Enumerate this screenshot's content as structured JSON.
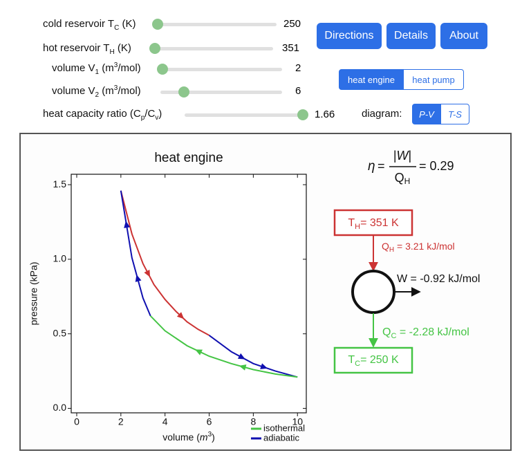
{
  "controls": [
    {
      "label": [
        "cold reservoir T",
        "C",
        " (K)"
      ],
      "value": 250
    },
    {
      "label": [
        "hot reservoir T",
        "H",
        " (K)"
      ],
      "value": 351
    },
    {
      "label": [
        "volume V",
        "1",
        " (m",
        "3",
        "/mol)"
      ],
      "value": 2
    },
    {
      "label": [
        "volume V",
        "2",
        " (m",
        "3",
        "/mol)"
      ],
      "value": 6
    },
    {
      "label": [
        "heat capacity ratio (C",
        "p",
        "/C",
        "v",
        ")"
      ],
      "value": 1.66
    }
  ],
  "buttons": [
    "Directions",
    "Details",
    "About"
  ],
  "mode_toggle": {
    "options": [
      "heat engine",
      "heat pump"
    ],
    "selected": 0
  },
  "diagram_toggle": {
    "label": "diagram:",
    "options": [
      "P-V",
      "T-S"
    ],
    "selected": 0
  },
  "chart_data": {
    "type": "line",
    "title": "heat engine",
    "xlabel": [
      "volume (",
      "m",
      "3",
      ")"
    ],
    "ylabel": "pressure (kPa)",
    "xlim": [
      -0.25,
      10.4
    ],
    "ylim": [
      -0.03,
      1.57
    ],
    "xticks": [
      0,
      2,
      4,
      6,
      8,
      10
    ],
    "yticks": [
      {
        "value": 0,
        "label": "0.0"
      },
      {
        "value": 0.5,
        "label": "0.5"
      },
      {
        "value": 1,
        "label": "1.0"
      },
      {
        "value": 1.5,
        "label": "1.5"
      }
    ],
    "series": [
      {
        "color": "#cc3333",
        "x": [
          2,
          2.5,
          3,
          3.5,
          4,
          4.5,
          5,
          5.5,
          6
        ],
        "values": [
          1.46,
          1.17,
          0.97,
          0.83,
          0.73,
          0.65,
          0.58,
          0.53,
          0.49
        ]
      },
      {
        "color": "#1010b0",
        "x": [
          6,
          7,
          8,
          9,
          10
        ],
        "values": [
          0.49,
          0.38,
          0.3,
          0.25,
          0.21
        ]
      },
      {
        "color": "#44c444",
        "x": [
          10,
          9,
          8,
          7,
          6,
          5,
          4,
          3.34
        ],
        "values": [
          0.21,
          0.23,
          0.26,
          0.3,
          0.35,
          0.42,
          0.52,
          0.62
        ]
      },
      {
        "color": "#1010b0",
        "x": [
          3.34,
          3,
          2.5,
          2
        ],
        "values": [
          0.62,
          0.74,
          1.01,
          1.46
        ]
      }
    ],
    "legend": [
      {
        "name": "isothermal",
        "color": "#44c444"
      },
      {
        "name": "adiabatic",
        "color": "#1010b0"
      }
    ]
  },
  "efficiency": {
    "symbol": "η",
    "equals": "=",
    "numerator": [
      "|",
      "W",
      "|"
    ],
    "denominator": [
      "Q",
      "H"
    ],
    "value": "= 0.29"
  },
  "energy_diagram": {
    "hot": [
      "T",
      "H",
      "= 351 K"
    ],
    "q_hot": [
      "Q",
      "H",
      " = 3.21 kJ/mol"
    ],
    "work": "W = -0.92 kJ/mol",
    "q_cold": [
      "Q",
      "C",
      " = -2.28 kJ/mol"
    ],
    "cold": [
      "T",
      "C",
      "= 250 K"
    ]
  }
}
